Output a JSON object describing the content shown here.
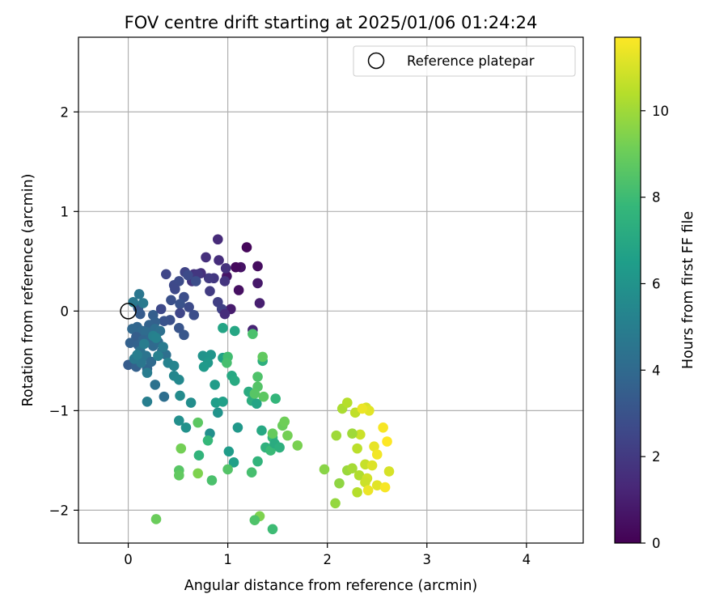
{
  "chart_data": {
    "type": "scatter",
    "title": "FOV centre drift starting at 2025/01/06 01:24:24",
    "xlabel": "Angular distance from reference (arcmin)",
    "ylabel": "Rotation from reference (arcmin)",
    "xlim": [
      -0.5,
      4.57
    ],
    "ylim": [
      -2.33,
      2.75
    ],
    "xticks": [
      0,
      1,
      2,
      3,
      4
    ],
    "yticks": [
      -2,
      -1,
      0,
      1,
      2
    ],
    "xtick_labels": [
      "0",
      "1",
      "2",
      "3",
      "4"
    ],
    "ytick_labels": [
      "−2",
      "−1",
      "0",
      "1",
      "2"
    ],
    "grid": true,
    "legend": {
      "position": "top-right",
      "entries": [
        {
          "label": "Reference platepar",
          "marker": "open-circle"
        }
      ]
    },
    "reference": {
      "x": 0,
      "y": 0
    },
    "colorbar": {
      "label": "Hours from first FF file",
      "min": 0,
      "max": 11.7,
      "ticks": [
        0,
        2,
        4,
        6,
        8,
        10
      ],
      "tick_labels": [
        "0",
        "2",
        "4",
        "6",
        "8",
        "10"
      ],
      "colormap": "viridis",
      "colormap_stops": [
        "#440154",
        "#482878",
        "#3e4989",
        "#31688e",
        "#26828e",
        "#1f9e89",
        "#35b779",
        "#6ece58",
        "#b5de2b",
        "#fde725"
      ]
    },
    "series": [
      {
        "hours": [
          0.2,
          0.4,
          0.6,
          0.8,
          1.0,
          1.2,
          0.3,
          0.5,
          0.7,
          0.9
        ],
        "points": [
          [
            1.19,
            0.64
          ],
          [
            1.3,
            0.45
          ],
          [
            1.13,
            0.44
          ],
          [
            1.3,
            0.28
          ],
          [
            1.32,
            0.08
          ],
          [
            1.25,
            -0.19
          ],
          [
            1.08,
            0.44
          ],
          [
            1.11,
            0.21
          ],
          [
            0.99,
            0.35
          ],
          [
            1.03,
            0.02
          ]
        ]
      },
      {
        "hours": [
          1.4,
          1.5,
          1.6,
          1.7,
          1.8,
          1.9,
          2.0,
          2.1,
          2.2,
          2.3,
          1.5,
          1.6,
          1.7,
          1.8,
          1.9
        ],
        "points": [
          [
            0.9,
            0.72
          ],
          [
            0.91,
            0.51
          ],
          [
            0.78,
            0.54
          ],
          [
            0.98,
            0.43
          ],
          [
            0.97,
            0.3
          ],
          [
            0.86,
            0.33
          ],
          [
            0.81,
            0.33
          ],
          [
            0.82,
            0.2
          ],
          [
            0.9,
            0.09
          ],
          [
            0.94,
            0.02
          ],
          [
            0.97,
            -0.03
          ],
          [
            0.73,
            0.38
          ],
          [
            0.66,
            0.37
          ],
          [
            0.64,
            0.3
          ],
          [
            0.7,
            0.37
          ]
        ]
      },
      {
        "hours": [
          2.4,
          2.5,
          2.6,
          2.7,
          2.8,
          2.9,
          3.0,
          2.5,
          2.6,
          2.7,
          2.8,
          2.9,
          3.0,
          3.1,
          3.2,
          2.6,
          2.7,
          2.8
        ],
        "points": [
          [
            0.57,
            0.39
          ],
          [
            0.38,
            0.37
          ],
          [
            0.46,
            0.26
          ],
          [
            0.51,
            0.3
          ],
          [
            0.56,
            0.14
          ],
          [
            0.43,
            0.11
          ],
          [
            0.52,
            0.07
          ],
          [
            0.52,
            -0.02
          ],
          [
            0.33,
            0.02
          ],
          [
            0.61,
            0.04
          ],
          [
            0.66,
            -0.04
          ],
          [
            0.42,
            -0.09
          ],
          [
            0.36,
            -0.1
          ],
          [
            0.51,
            -0.17
          ],
          [
            0.56,
            -0.24
          ],
          [
            0.47,
            0.22
          ],
          [
            0.6,
            0.36
          ],
          [
            0.68,
            0.3
          ]
        ]
      },
      {
        "hours": [
          3.3,
          3.4,
          3.5,
          3.6,
          3.7,
          3.8,
          3.9,
          4.0,
          4.1,
          4.2,
          4.3,
          3.5,
          3.6,
          3.7,
          3.8,
          3.9,
          4.0,
          4.1,
          4.2,
          4.3,
          4.4,
          4.5,
          3.4,
          3.6,
          3.8,
          4.0,
          4.2,
          4.4
        ],
        "points": [
          [
            0.1,
            0.03
          ],
          [
            0.12,
            -0.03
          ],
          [
            0.25,
            -0.04
          ],
          [
            0.27,
            -0.11
          ],
          [
            0.21,
            -0.14
          ],
          [
            0.09,
            -0.16
          ],
          [
            0.04,
            -0.18
          ],
          [
            0.14,
            -0.2
          ],
          [
            0.18,
            -0.21
          ],
          [
            0.27,
            -0.18
          ],
          [
            0.32,
            -0.2
          ],
          [
            0.08,
            -0.26
          ],
          [
            0.02,
            -0.32
          ],
          [
            0.1,
            -0.34
          ],
          [
            0.15,
            -0.29
          ],
          [
            0.22,
            -0.28
          ],
          [
            0.25,
            -0.35
          ],
          [
            0.3,
            -0.31
          ],
          [
            0.34,
            -0.4
          ],
          [
            0.38,
            -0.44
          ],
          [
            0.12,
            -0.4
          ],
          [
            0.18,
            -0.45
          ],
          [
            0.0,
            -0.54
          ],
          [
            0.08,
            -0.56
          ],
          [
            0.19,
            -0.58
          ],
          [
            0.23,
            -0.51
          ],
          [
            0.36,
            -0.86
          ],
          [
            0.27,
            -0.74
          ]
        ]
      },
      {
        "hours": [
          4.6,
          4.7,
          4.8,
          4.9,
          5.0,
          5.1,
          5.2,
          5.3,
          5.4,
          5.5,
          5.6,
          4.6,
          4.7,
          4.8,
          4.9,
          5.0,
          5.1,
          5.2
        ],
        "points": [
          [
            0.11,
            0.17
          ],
          [
            0.05,
            0.09
          ],
          [
            0.15,
            0.08
          ],
          [
            0.19,
            -0.62
          ],
          [
            0.19,
            -0.91
          ],
          [
            0.3,
            -0.45
          ],
          [
            0.4,
            -0.52
          ],
          [
            0.46,
            -0.55
          ],
          [
            0.46,
            -0.65
          ],
          [
            0.51,
            -0.69
          ],
          [
            0.52,
            -0.85
          ],
          [
            0.13,
            -0.52
          ],
          [
            0.06,
            -0.48
          ],
          [
            0.35,
            -0.36
          ],
          [
            0.16,
            -0.33
          ],
          [
            0.09,
            -0.44
          ],
          [
            0.25,
            -0.25
          ],
          [
            0.28,
            -0.27
          ]
        ]
      },
      {
        "hours": [
          5.7,
          5.8,
          5.9,
          6.0,
          6.1,
          6.2,
          6.3,
          6.4,
          6.5,
          6.6,
          6.7,
          6.8,
          6.9,
          7.0,
          7.1,
          7.2,
          7.3,
          7.4,
          7.5,
          7.6,
          7.7,
          7.8,
          7.9,
          8.0,
          5.8,
          6.0,
          6.2,
          6.4,
          6.6,
          6.8,
          7.0,
          7.2,
          7.4,
          7.6,
          7.8
        ],
        "points": [
          [
            0.63,
            -0.92
          ],
          [
            0.51,
            -1.1
          ],
          [
            0.58,
            -1.17
          ],
          [
            0.75,
            -0.45
          ],
          [
            0.83,
            -0.44
          ],
          [
            0.8,
            -0.52
          ],
          [
            0.76,
            -0.56
          ],
          [
            0.87,
            -0.74
          ],
          [
            0.88,
            -0.92
          ],
          [
            0.95,
            -0.91
          ],
          [
            0.95,
            -0.47
          ],
          [
            0.95,
            -0.17
          ],
          [
            1.07,
            -0.2
          ],
          [
            1.04,
            -0.65
          ],
          [
            1.07,
            -0.7
          ],
          [
            1.21,
            -0.81
          ],
          [
            1.24,
            -0.9
          ],
          [
            1.35,
            -0.5
          ],
          [
            1.38,
            -1.37
          ],
          [
            1.3,
            -1.51
          ],
          [
            1.48,
            -0.88
          ],
          [
            1.45,
            -1.27
          ],
          [
            1.43,
            -1.4
          ],
          [
            1.45,
            -2.19
          ],
          [
            0.82,
            -1.23
          ],
          [
            0.9,
            -1.02
          ],
          [
            1.1,
            -1.17
          ],
          [
            1.01,
            -1.41
          ],
          [
            1.06,
            -1.52
          ],
          [
            1.29,
            -0.93
          ],
          [
            1.34,
            -1.2
          ],
          [
            1.47,
            -1.33
          ],
          [
            1.52,
            -1.37
          ],
          [
            0.71,
            -1.45
          ],
          [
            0.8,
            -1.3
          ]
        ]
      },
      {
        "hours": [
          8.1,
          8.2,
          8.3,
          8.4,
          8.5,
          8.6,
          8.7,
          8.8,
          8.9,
          9.0,
          9.1,
          9.2,
          9.3,
          9.4,
          8.2,
          8.4,
          8.6,
          8.8,
          9.0,
          9.2,
          9.4,
          8.3,
          8.5,
          8.7
        ],
        "points": [
          [
            1.0,
            -0.46
          ],
          [
            0.99,
            -0.52
          ],
          [
            1.25,
            -0.23
          ],
          [
            1.3,
            -0.66
          ],
          [
            1.3,
            -0.76
          ],
          [
            1.27,
            -0.83
          ],
          [
            1.36,
            -0.86
          ],
          [
            1.35,
            -0.46
          ],
          [
            1.45,
            -1.23
          ],
          [
            1.55,
            -1.15
          ],
          [
            1.57,
            -1.11
          ],
          [
            1.6,
            -1.25
          ],
          [
            1.7,
            -1.35
          ],
          [
            1.32,
            -2.06
          ],
          [
            1.24,
            -1.62
          ],
          [
            1.27,
            -2.1
          ],
          [
            0.51,
            -1.6
          ],
          [
            0.51,
            -1.65
          ],
          [
            0.28,
            -2.09
          ],
          [
            0.53,
            -1.38
          ],
          [
            0.7,
            -1.63
          ],
          [
            0.84,
            -1.7
          ],
          [
            1.0,
            -1.59
          ],
          [
            0.7,
            -1.12
          ]
        ]
      },
      {
        "hours": [
          9.6,
          9.8,
          10.0,
          10.2,
          10.4,
          10.6,
          10.8,
          11.0,
          11.2,
          11.4,
          11.6,
          9.7,
          9.9,
          10.1,
          10.3,
          10.5,
          10.7,
          10.9,
          11.1,
          11.3,
          11.5,
          11.7,
          10.0,
          10.4,
          10.8,
          11.2,
          11.6,
          11.0,
          11.4
        ],
        "points": [
          [
            1.97,
            -1.59
          ],
          [
            2.08,
            -1.93
          ],
          [
            2.09,
            -1.25
          ],
          [
            2.15,
            -0.98
          ],
          [
            2.2,
            -0.92
          ],
          [
            2.28,
            -1.02
          ],
          [
            2.33,
            -1.24
          ],
          [
            2.39,
            -0.97
          ],
          [
            2.42,
            -1.0
          ],
          [
            2.35,
            -0.98
          ],
          [
            2.56,
            -1.17
          ],
          [
            2.12,
            -1.73
          ],
          [
            2.2,
            -1.6
          ],
          [
            2.25,
            -1.58
          ],
          [
            2.32,
            -1.65
          ],
          [
            2.3,
            -1.38
          ],
          [
            2.38,
            -1.54
          ],
          [
            2.4,
            -1.68
          ],
          [
            2.45,
            -1.55
          ],
          [
            2.47,
            -1.36
          ],
          [
            2.5,
            -1.44
          ],
          [
            2.6,
            -1.31
          ],
          [
            2.25,
            -1.23
          ],
          [
            2.3,
            -1.82
          ],
          [
            2.38,
            -1.72
          ],
          [
            2.5,
            -1.75
          ],
          [
            2.58,
            -1.77
          ],
          [
            2.62,
            -1.61
          ],
          [
            2.41,
            -1.8
          ]
        ]
      }
    ]
  }
}
